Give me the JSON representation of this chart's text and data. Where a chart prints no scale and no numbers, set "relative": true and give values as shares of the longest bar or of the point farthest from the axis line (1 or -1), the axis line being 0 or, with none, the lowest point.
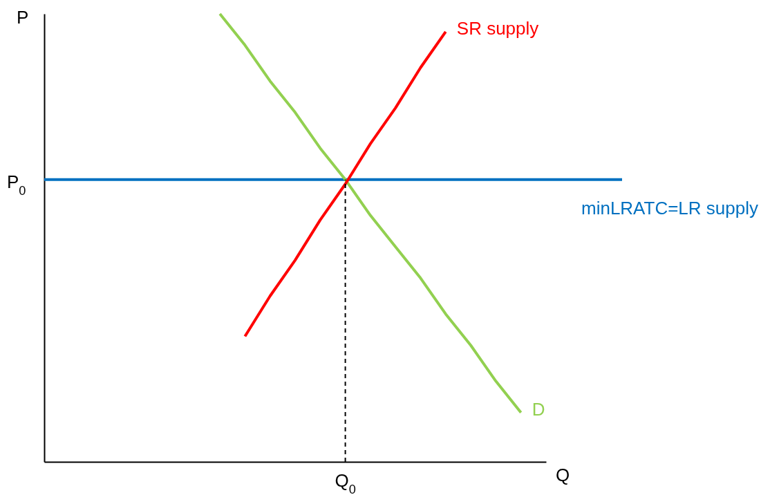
{
  "chart_data": {
    "type": "line",
    "relative": true,
    "xlabel": "Q",
    "ylabel": "P",
    "categories": [
      null,
      null,
      null,
      null,
      null,
      null,
      null,
      null,
      null,
      null,
      null,
      null,
      null,
      null,
      null,
      null,
      null,
      null,
      null,
      null,
      null
    ],
    "series": [
      {
        "name": "D",
        "color": "#92d050",
        "values": [
          null,
          null,
          null,
          null,
          null,
          null,
          null,
          1.0,
          0.93,
          0.85,
          0.78,
          0.7,
          0.63,
          0.55,
          0.48,
          0.41,
          0.33,
          0.26,
          0.18,
          0.11,
          null
        ]
      },
      {
        "name": "SR supply",
        "color": "#ff0000",
        "values": [
          null,
          null,
          null,
          null,
          null,
          null,
          null,
          null,
          0.28,
          0.37,
          0.45,
          0.54,
          0.62,
          0.71,
          0.79,
          0.88,
          0.96,
          null,
          null,
          null,
          null
        ]
      }
    ],
    "ref_lines": [
      {
        "axis": "y",
        "value": 0.63,
        "label": "minLRATC=LR supply",
        "color": "#0070c0",
        "line_style": "solid"
      }
    ],
    "annotations": [
      "P$_{0}$",
      "Q$_{0}$"
    ]
  }
}
